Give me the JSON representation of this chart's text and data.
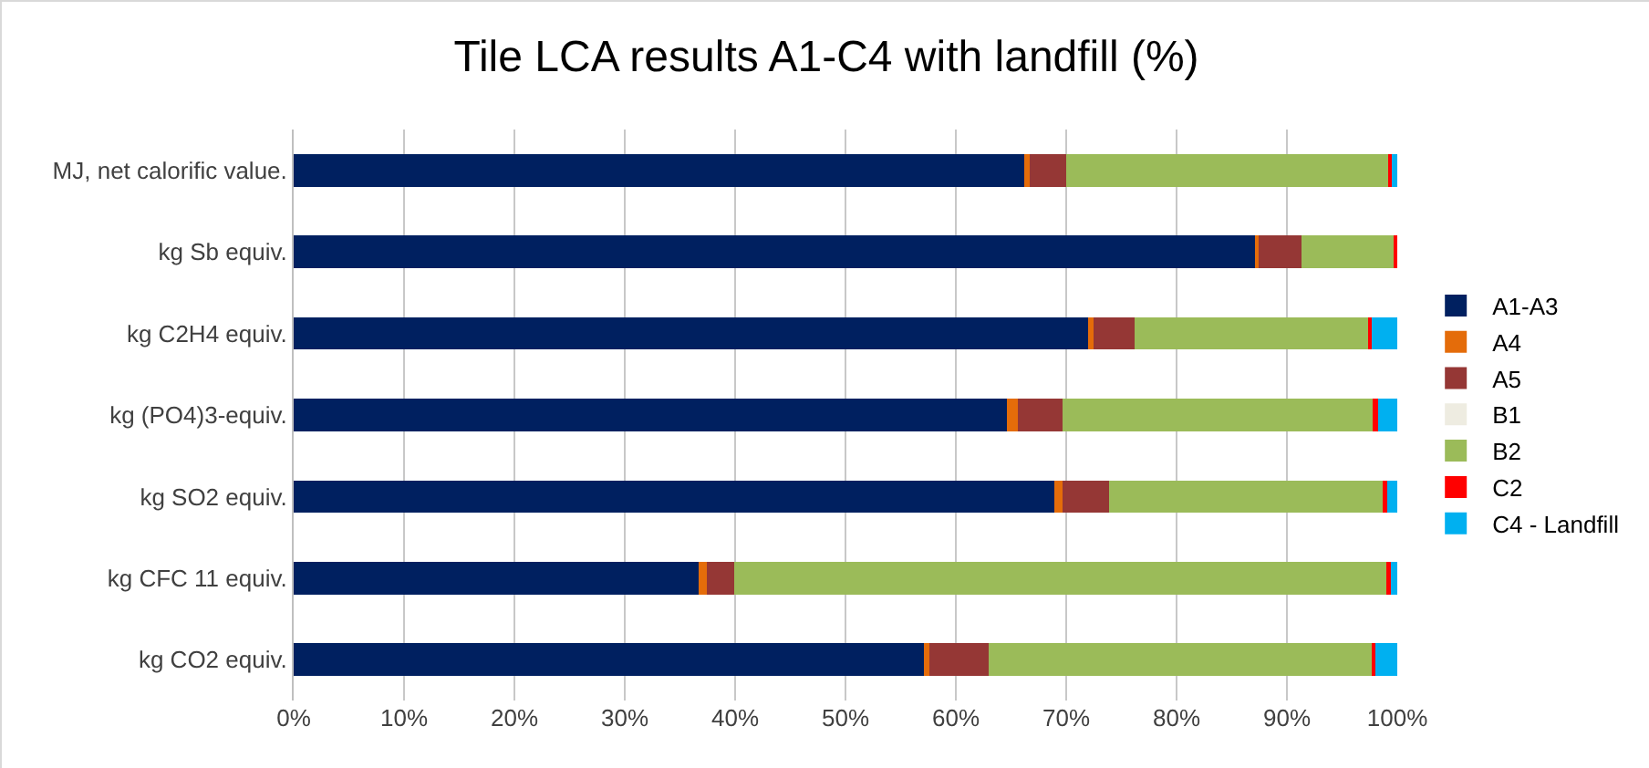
{
  "chart_data": {
    "type": "bar",
    "title": "Tile LCA results A1-C4 with landfill (%)",
    "orientation": "horizontal",
    "stacked": true,
    "categories": [
      "MJ, net calorific value.",
      "kg Sb equiv.",
      "kg C2H4 equiv.",
      "kg (PO4)3-equiv.",
      "kg SO2 equiv.",
      "kg CFC 11 equiv.",
      "kg CO2 equiv."
    ],
    "series": [
      {
        "name": "A1-A3",
        "color": "#002060",
        "values": [
          66.2,
          87.2,
          72.0,
          64.6,
          68.9,
          36.7,
          57.1
        ]
      },
      {
        "name": "A4",
        "color": "#e46c0a",
        "values": [
          0.5,
          0.2,
          0.5,
          1.0,
          0.8,
          0.7,
          0.5
        ]
      },
      {
        "name": "A5",
        "color": "#953735",
        "values": [
          3.3,
          3.9,
          3.7,
          4.1,
          4.2,
          2.5,
          5.4
        ]
      },
      {
        "name": "B1",
        "color": "#eeece1",
        "values": [
          0,
          0,
          0,
          0,
          0,
          0,
          0
        ]
      },
      {
        "name": "B2",
        "color": "#9bbb59",
        "values": [
          29.2,
          8.5,
          21.2,
          28.1,
          24.8,
          59.1,
          34.7
        ]
      },
      {
        "name": "C2",
        "color": "#ff0000",
        "values": [
          0.3,
          0.2,
          0.3,
          0.5,
          0.4,
          0.4,
          0.3
        ]
      },
      {
        "name": "C4 - Landfill",
        "color": "#00b0f0",
        "values": [
          0.5,
          0,
          2.3,
          1.7,
          0.9,
          0.6,
          2.0
        ]
      }
    ],
    "xlim": [
      0,
      100
    ],
    "xticks": [
      {
        "value": 0,
        "label": "0%"
      },
      {
        "value": 10,
        "label": "10%"
      },
      {
        "value": 20,
        "label": "20%"
      },
      {
        "value": 30,
        "label": "30%"
      },
      {
        "value": 40,
        "label": "40%"
      },
      {
        "value": 50,
        "label": "50%"
      },
      {
        "value": 60,
        "label": "60%"
      },
      {
        "value": 70,
        "label": "70%"
      },
      {
        "value": 80,
        "label": "80%"
      },
      {
        "value": 90,
        "label": "90%"
      },
      {
        "value": 100,
        "label": "100%"
      }
    ],
    "grid": "x",
    "legend": "right"
  }
}
